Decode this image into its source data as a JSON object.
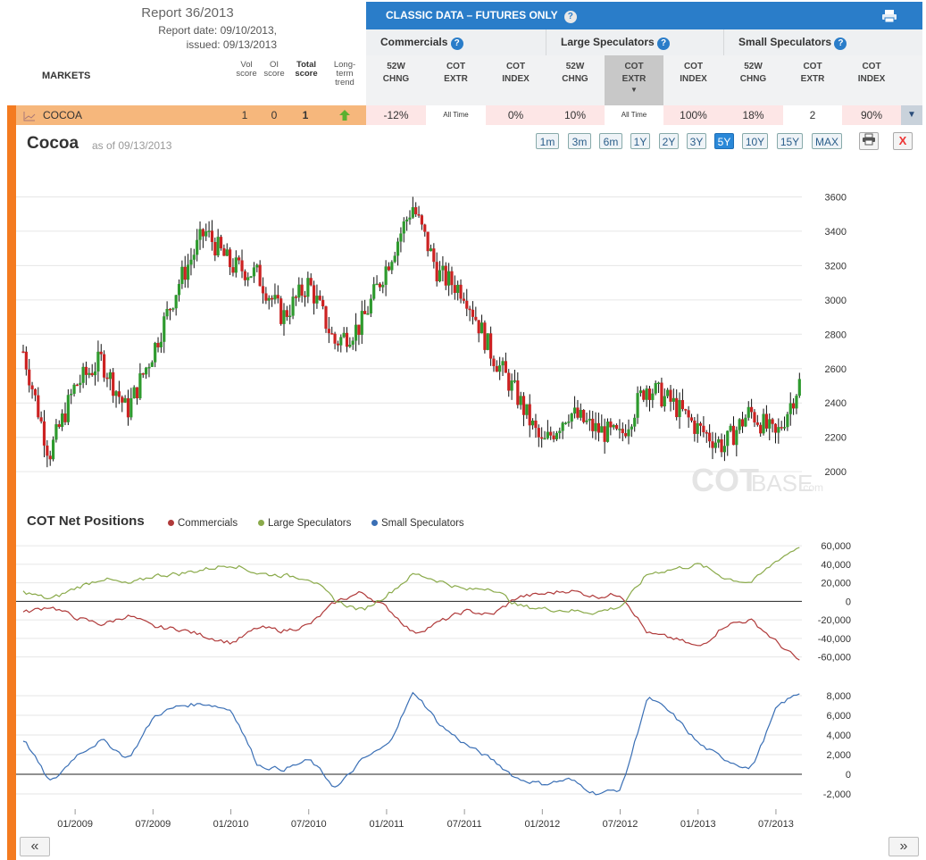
{
  "report": {
    "title": "Report 36/2013",
    "report_date": "Report date: 09/10/2013,",
    "issued": "issued: 09/13/2013"
  },
  "markets_label": "MARKETS",
  "score_headers": {
    "vol": [
      "Vol",
      "score"
    ],
    "oi": [
      "OI",
      "score"
    ],
    "total": [
      "Total",
      "score"
    ],
    "trend": [
      "Long-",
      "term",
      "trend"
    ]
  },
  "banner": {
    "title": "CLASSIC DATA – FUTURES ONLY",
    "help": "?",
    "print_icon": "printer-icon"
  },
  "groups": [
    {
      "label": "Commercials",
      "help": "?"
    },
    {
      "label": "Large Speculators",
      "help": "?"
    },
    {
      "label": "Small Speculators",
      "help": "?"
    }
  ],
  "columns": [
    [
      "52W",
      "CHNG"
    ],
    [
      "COT",
      "EXTR"
    ],
    [
      "COT",
      "INDEX"
    ],
    [
      "52W",
      "CHNG"
    ],
    [
      "COT",
      "EXTR"
    ],
    [
      "COT",
      "INDEX"
    ],
    [
      "52W",
      "CHNG"
    ],
    [
      "COT",
      "EXTR"
    ],
    [
      "COT",
      "INDEX"
    ]
  ],
  "row": {
    "market": "COCOA",
    "vol": "1",
    "oi": "0",
    "total": "1",
    "trend": "up",
    "cells": [
      "-12%",
      "All Time",
      "0%",
      "10%",
      "All Time",
      "100%",
      "18%",
      "2",
      "90%"
    ],
    "expand_icon": "caret-down-icon"
  },
  "chart_header": {
    "title": "Cocoa",
    "as_of": "as of 09/13/2013",
    "ranges": [
      "1m",
      "3m",
      "6m",
      "1Y",
      "2Y",
      "3Y",
      "5Y",
      "10Y",
      "15Y",
      "MAX"
    ],
    "selected_range": "5Y",
    "close": "X",
    "watermark_a": "COT",
    "watermark_b": "BASE",
    "watermark_c": ".com"
  },
  "net": {
    "title": "COT Net Positions",
    "legend": [
      {
        "label": "Commercials",
        "color": "#b03a3a"
      },
      {
        "label": "Large Speculators",
        "color": "#8aaa4a"
      },
      {
        "label": "Small Speculators",
        "color": "#3a6fb5"
      }
    ]
  },
  "nav": {
    "prev": "«",
    "next": "»"
  },
  "chart_data": [
    {
      "type": "candlestick",
      "title": "Cocoa",
      "ylim": [
        1850,
        3800
      ],
      "yticks": [
        2000,
        2200,
        2400,
        2600,
        2800,
        3000,
        3200,
        3400,
        3600
      ],
      "up_color": "#2e9a2e",
      "down_color": "#cc2222",
      "x": [
        "2008-09",
        "2008-11",
        "2009-01",
        "2009-03",
        "2009-05",
        "2009-07",
        "2009-09",
        "2009-11",
        "2010-01",
        "2010-03",
        "2010-05",
        "2010-07",
        "2010-09",
        "2010-11",
        "2011-01",
        "2011-03",
        "2011-05",
        "2011-07",
        "2011-09",
        "2011-11",
        "2012-01",
        "2012-03",
        "2012-05",
        "2012-07",
        "2012-09",
        "2012-11",
        "2013-01",
        "2013-03",
        "2013-05",
        "2013-07",
        "2013-09"
      ],
      "close": [
        2700,
        2100,
        2500,
        2650,
        2350,
        2700,
        3100,
        3400,
        3200,
        3150,
        2900,
        3100,
        2750,
        2850,
        3200,
        3550,
        3150,
        3050,
        2700,
        2450,
        2150,
        2350,
        2250,
        2200,
        2500,
        2400,
        2250,
        2150,
        2350,
        2200,
        2550
      ]
    },
    {
      "type": "line",
      "title": "COT Net Positions",
      "ylim": [
        -70000,
        65000
      ],
      "yticks": [
        -60000,
        -40000,
        -20000,
        0,
        20000,
        40000,
        60000
      ],
      "x": [
        "2008-09",
        "2008-11",
        "2009-01",
        "2009-03",
        "2009-05",
        "2009-07",
        "2009-09",
        "2009-11",
        "2010-01",
        "2010-03",
        "2010-05",
        "2010-07",
        "2010-09",
        "2010-11",
        "2011-01",
        "2011-03",
        "2011-05",
        "2011-07",
        "2011-09",
        "2011-11",
        "2012-01",
        "2012-03",
        "2012-05",
        "2012-07",
        "2012-09",
        "2012-11",
        "2013-01",
        "2013-03",
        "2013-05",
        "2013-07",
        "2013-09"
      ],
      "series": [
        {
          "name": "Commercials",
          "values": [
            -12000,
            -5000,
            -18000,
            -25000,
            -15000,
            -28000,
            -30000,
            -38000,
            -45000,
            -28000,
            -32000,
            -25000,
            0,
            10000,
            -8000,
            -35000,
            -22000,
            -10000,
            -15000,
            5000,
            8000,
            12000,
            5000,
            8000,
            -35000,
            -40000,
            -50000,
            -25000,
            -20000,
            -45000,
            -68000
          ]
        },
        {
          "name": "Large Speculators",
          "values": [
            10000,
            2000,
            15000,
            25000,
            18000,
            28000,
            30000,
            35000,
            40000,
            30000,
            28000,
            25000,
            0,
            -10000,
            8000,
            30000,
            22000,
            12000,
            15000,
            -5000,
            -8000,
            -10000,
            -12000,
            -5000,
            30000,
            35000,
            40000,
            25000,
            20000,
            45000,
            62000
          ]
        }
      ]
    },
    {
      "type": "line",
      "ylim": [
        -3000,
        9000
      ],
      "yticks": [
        -2000,
        0,
        2000,
        4000,
        6000,
        8000
      ],
      "x": [
        "2008-09",
        "2008-11",
        "2009-01",
        "2009-03",
        "2009-05",
        "2009-07",
        "2009-09",
        "2009-11",
        "2010-01",
        "2010-03",
        "2010-05",
        "2010-07",
        "2010-09",
        "2010-11",
        "2011-01",
        "2011-03",
        "2011-05",
        "2011-07",
        "2011-09",
        "2011-11",
        "2012-01",
        "2012-03",
        "2012-05",
        "2012-07",
        "2012-09",
        "2012-11",
        "2013-01",
        "2013-03",
        "2013-05",
        "2013-07",
        "2013-09"
      ],
      "series": [
        {
          "name": "Small Speculators",
          "values": [
            3500,
            -1000,
            2000,
            3500,
            1500,
            6000,
            7000,
            7200,
            6500,
            800,
            500,
            1500,
            -1500,
            1500,
            3000,
            8500,
            5000,
            3000,
            1500,
            -500,
            -1000,
            -500,
            -2000,
            -1500,
            8000,
            6000,
            3000,
            1500,
            500,
            7000,
            8500
          ]
        }
      ]
    }
  ],
  "x_tick_labels": [
    "01/2009",
    "07/2009",
    "01/2010",
    "07/2010",
    "01/2011",
    "07/2011",
    "01/2012",
    "07/2012",
    "01/2013",
    "07/2013"
  ]
}
